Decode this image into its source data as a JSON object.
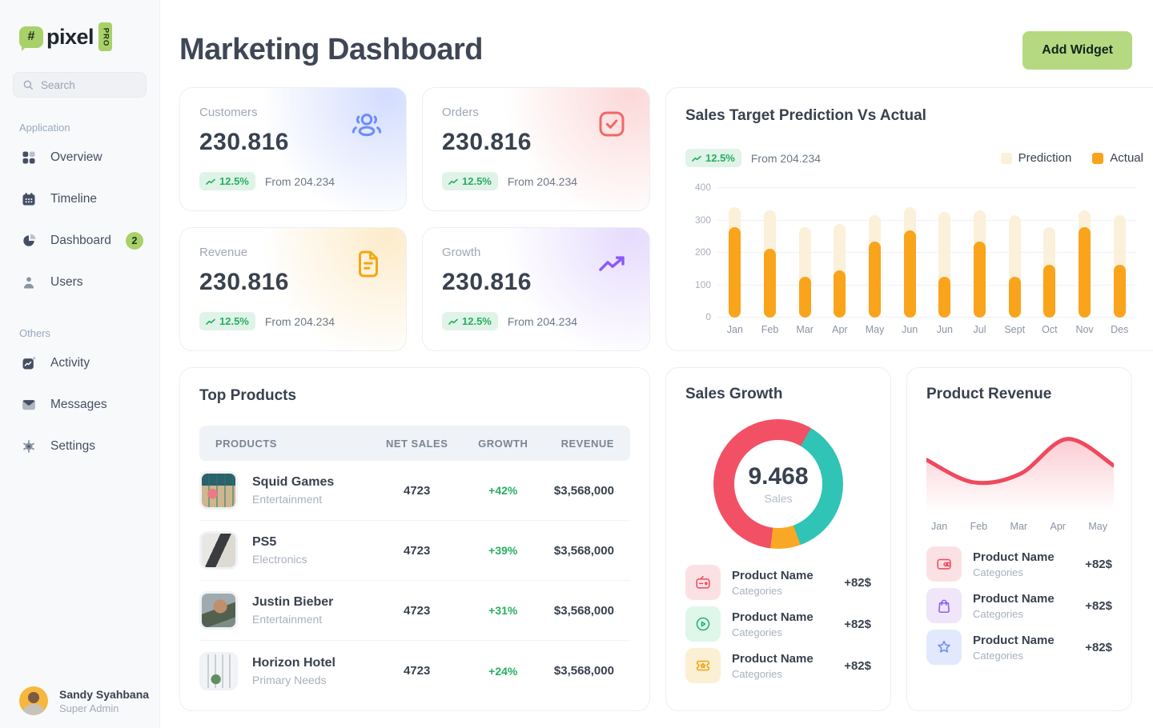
{
  "app": {
    "logo_text": "pixel",
    "logo_hash": "#",
    "logo_badge": "PRO"
  },
  "sidebar": {
    "search_placeholder": "Search",
    "sections": [
      {
        "label": "Application",
        "items": [
          {
            "label": "Overview"
          },
          {
            "label": "Timeline"
          },
          {
            "label": "Dashboard",
            "badge": "2"
          },
          {
            "label": "Users"
          }
        ]
      },
      {
        "label": "Others",
        "items": [
          {
            "label": "Activity"
          },
          {
            "label": "Messages"
          },
          {
            "label": "Settings"
          }
        ]
      }
    ],
    "user": {
      "name": "Sandy Syahbana",
      "role": "Super Admin"
    }
  },
  "header": {
    "title": "Marketing Dashboard",
    "add_widget_label": "Add Widget"
  },
  "stats": [
    {
      "label": "Customers",
      "value": "230.816",
      "change": "12.5%",
      "from": "From 204.234",
      "accent": "#6D8DFB",
      "icon": "users-group-icon"
    },
    {
      "label": "Orders",
      "value": "230.816",
      "change": "12.5%",
      "from": "From 204.234",
      "accent": "#F26666",
      "icon": "check-square-icon"
    },
    {
      "label": "Revenue",
      "value": "230.816",
      "change": "12.5%",
      "from": "From 204.234",
      "accent": "#F3A712",
      "icon": "document-icon"
    },
    {
      "label": "Growth",
      "value": "230.816",
      "change": "12.5%",
      "from": "From 204.234",
      "accent": "#8B5CF6",
      "icon": "trend-up-icon"
    }
  ],
  "sales_chart_header": {
    "title": "Sales Target Prediction Vs Actual",
    "change": "12.5%",
    "from": "From 204.234"
  },
  "chart_data": [
    {
      "id": "sales_target_prediction_vs_actual",
      "type": "bar",
      "title": "Sales Target Prediction Vs Actual",
      "categories": [
        "Jan",
        "Feb",
        "Mar",
        "Apr",
        "May",
        "Jun",
        "Jun",
        "Jul",
        "Sept",
        "Oct",
        "Nov",
        "Des"
      ],
      "series": [
        {
          "name": "Prediction",
          "color": "#FBF0DA",
          "values": [
            340,
            332,
            280,
            288,
            315,
            340,
            325,
            332,
            315,
            280,
            332,
            315
          ]
        },
        {
          "name": "Actual",
          "color": "#F9A41B",
          "values": [
            280,
            212,
            126,
            146,
            235,
            268,
            126,
            235,
            126,
            163,
            280,
            163
          ]
        }
      ],
      "ylim": [
        0,
        400
      ],
      "yticks": [
        0,
        100,
        200,
        300,
        400
      ],
      "grid": "horizontal",
      "legend_position": "top-right"
    },
    {
      "id": "sales_growth",
      "type": "donut",
      "title": "Sales Growth",
      "center_value": "9.468",
      "center_label": "Sales",
      "rotation_deg": 187,
      "segments": [
        {
          "color": "#F25065",
          "value": 56.5
        },
        {
          "color": "#2FC4B5",
          "value": 36
        },
        {
          "color": "#F9A826",
          "value": 7.5
        }
      ]
    },
    {
      "id": "product_revenue",
      "type": "area",
      "title": "Product Revenue",
      "color": "#F0495D",
      "x": [
        "Jan",
        "Feb",
        "Mar",
        "Apr",
        "May"
      ],
      "values": [
        57,
        30,
        40,
        82,
        50
      ],
      "ylim": [
        0,
        100
      ],
      "grid": "off"
    }
  ],
  "top_products": {
    "title": "Top Products",
    "columns": [
      "PRODUCTS",
      "NET SALES",
      "GROWTH",
      "REVENUE"
    ],
    "rows": [
      {
        "name": "Squid Games",
        "category": "Entertainment",
        "net_sales": "4723",
        "growth": "+42%",
        "revenue": "$3,568,000"
      },
      {
        "name": "PS5",
        "category": "Electronics",
        "net_sales": "4723",
        "growth": "+39%",
        "revenue": "$3,568,000"
      },
      {
        "name": "Justin Bieber",
        "category": "Entertainment",
        "net_sales": "4723",
        "growth": "+31%",
        "revenue": "$3,568,000"
      },
      {
        "name": "Horizon Hotel",
        "category": "Primary Needs",
        "net_sales": "4723",
        "growth": "+24%",
        "revenue": "$3,568,000"
      }
    ]
  },
  "sales_growth": {
    "title": "Sales Growth",
    "center_value": "9.468",
    "center_label": "Sales",
    "items": [
      {
        "name": "Product Name",
        "category": "Categories",
        "value": "+82$",
        "icon": "radio-icon"
      },
      {
        "name": "Product Name",
        "category": "Categories",
        "value": "+82$",
        "icon": "play-circle-icon"
      },
      {
        "name": "Product Name",
        "category": "Categories",
        "value": "+82$",
        "icon": "ticket-icon"
      }
    ]
  },
  "product_revenue": {
    "title": "Product Revenue",
    "items": [
      {
        "name": "Product Name",
        "category": "Categories",
        "value": "+82$",
        "icon": "wallet-icon"
      },
      {
        "name": "Product Name",
        "category": "Categories",
        "value": "+82$",
        "icon": "shopping-bag-icon"
      },
      {
        "name": "Product Name",
        "category": "Categories",
        "value": "+82$",
        "icon": "star-icon"
      }
    ]
  },
  "colors": {
    "brand_green": "#A8D169",
    "button_green": "#B4D981",
    "positive_green": "#27AE60",
    "bar_actual": "#F9A41B",
    "bar_prediction": "#FBF0DA",
    "donut_red": "#F25065",
    "donut_teal": "#2FC4B5",
    "donut_orange": "#F9A826",
    "revenue_line": "#F0495D"
  }
}
